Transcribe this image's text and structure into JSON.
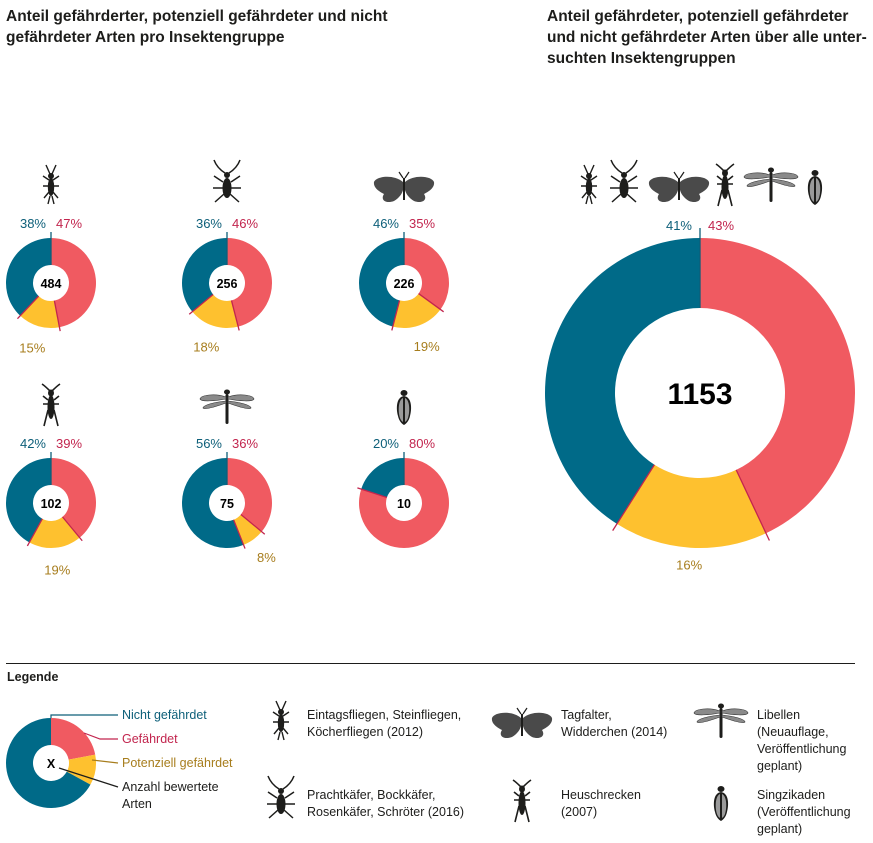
{
  "titles": {
    "left": "Anteil gefährderter, potenziell gefährdeter und nicht\ngefährdeter Arten pro Insektengruppe",
    "right": "Anteil gefährdeter, potenziell gefährdeter\nund nicht gefährdeter Arten über alle unter-\nsuchten Insektengruppen"
  },
  "colors": {
    "nicht_gefaehrdet": "#006a88",
    "gefaehrdet": "#f05a61",
    "potenziell_gefaehrdet": "#fec12f",
    "nicht_label": "#0d5f79",
    "gef_label": "#c2254e",
    "pot_label": "#a77d1d"
  },
  "chart_data": [
    {
      "type": "pie",
      "group_icon": "mayfly-stonefly-icon",
      "total": "484",
      "series": [
        {
          "name": "Gefährdet",
          "value": 47,
          "label": "47%"
        },
        {
          "name": "Potenziell gefährdet",
          "value": 15,
          "label": "15%"
        },
        {
          "name": "Nicht gefährdet",
          "value": 38,
          "label": "38%"
        }
      ]
    },
    {
      "type": "pie",
      "group_icon": "beetle-icon",
      "total": "256",
      "series": [
        {
          "name": "Gefährdet",
          "value": 46,
          "label": "46%"
        },
        {
          "name": "Potenziell gefährdet",
          "value": 18,
          "label": "18%"
        },
        {
          "name": "Nicht gefährdet",
          "value": 36,
          "label": "36%"
        }
      ]
    },
    {
      "type": "pie",
      "group_icon": "butterfly-icon",
      "total": "226",
      "series": [
        {
          "name": "Gefährdet",
          "value": 35,
          "label": "35%"
        },
        {
          "name": "Potenziell gefährdet",
          "value": 19,
          "label": "19%"
        },
        {
          "name": "Nicht gefährdet",
          "value": 46,
          "label": "46%"
        }
      ]
    },
    {
      "type": "pie",
      "group_icon": "grasshopper-icon",
      "total": "102",
      "series": [
        {
          "name": "Gefährdet",
          "value": 39,
          "label": "39%"
        },
        {
          "name": "Potenziell gefährdet",
          "value": 19,
          "label": "19%"
        },
        {
          "name": "Nicht gefährdet",
          "value": 42,
          "label": "42%"
        }
      ]
    },
    {
      "type": "pie",
      "group_icon": "dragonfly-icon",
      "total": "75",
      "series": [
        {
          "name": "Gefährdet",
          "value": 36,
          "label": "36%"
        },
        {
          "name": "Potenziell gefährdet",
          "value": 8,
          "label": "8%"
        },
        {
          "name": "Nicht gefährdet",
          "value": 56,
          "label": "56%"
        }
      ]
    },
    {
      "type": "pie",
      "group_icon": "cicada-icon",
      "total": "10",
      "series": [
        {
          "name": "Gefährdet",
          "value": 80,
          "label": "80%"
        },
        {
          "name": "Potenziell gefährdet",
          "value": 0,
          "label": ""
        },
        {
          "name": "Nicht gefährdet",
          "value": 20,
          "label": "20%"
        }
      ]
    },
    {
      "type": "pie",
      "group_icon": "all-groups-icons",
      "total": "1153",
      "series": [
        {
          "name": "Gefährdet",
          "value": 43,
          "label": "43%"
        },
        {
          "name": "Potenziell gefährdet",
          "value": 16,
          "label": "16%"
        },
        {
          "name": "Nicht gefährdet",
          "value": 41,
          "label": "41%"
        }
      ]
    }
  ],
  "legend": {
    "title": "Legende",
    "center_symbol": "X",
    "nicht_gefaehrdet": "Nicht gefährdet",
    "gefaehrdet": "Gefährdet",
    "potenziell_gefaehrdet": "Potenziell gefährdet",
    "anzahl": "Anzahl bewertete\nArten",
    "groups": {
      "eintagsfliegen": "Eintagsfliegen, Steinfliegen,\nKöcherfliegen (2012)",
      "prachtkaefer": "Prachtkäfer, Bockkäfer,\nRosenkäfer, Schröter (2016)",
      "tagfalter": "Tagfalter,\nWidderchen (2014)",
      "heuschrecken": "Heuschrecken\n(2007)",
      "libellen": "Libellen\n(Neuauflage,\nVeröffentlichung\ngeplant)",
      "singzikaden": "Singzikaden\n(Veröffentlichung\ngeplant)"
    }
  }
}
